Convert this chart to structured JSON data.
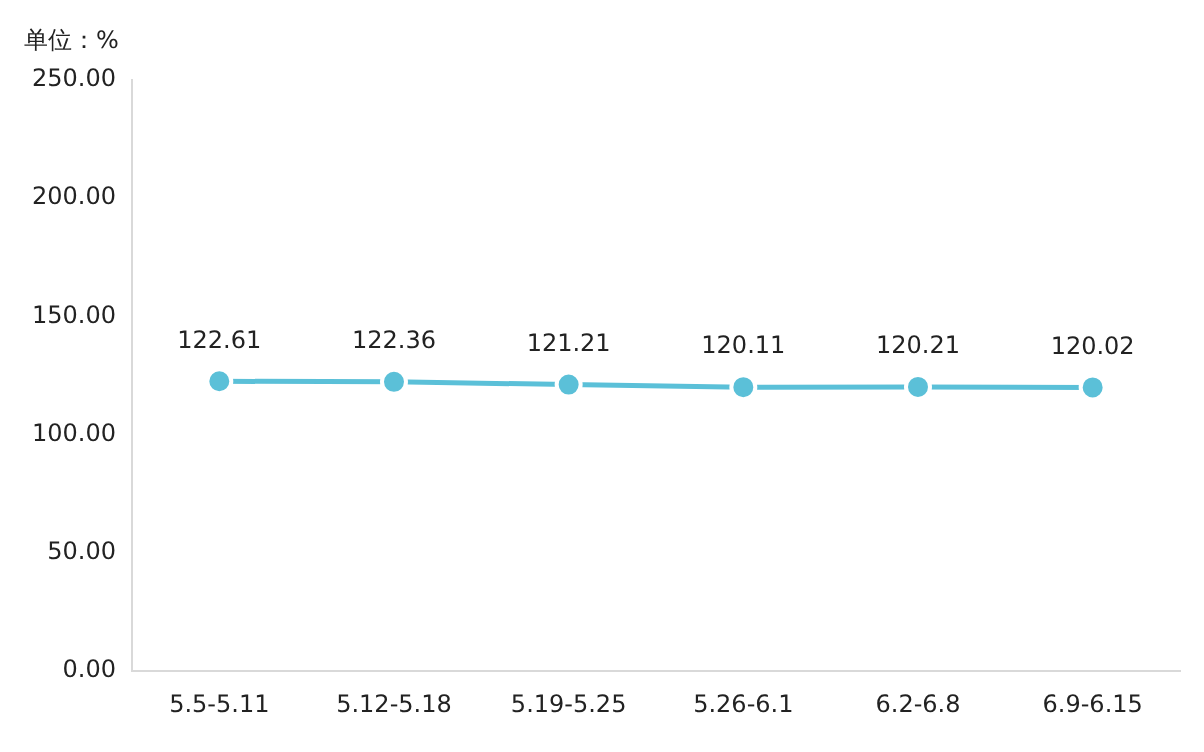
{
  "chart_data": {
    "type": "line",
    "ylabel": "单位：%",
    "categories": [
      "5.5-5.11",
      "5.12-5.18",
      "5.19-5.25",
      "5.26-6.1",
      "6.2-6.8",
      "6.9-6.15"
    ],
    "series": [
      {
        "color": "#5bc0d8",
        "values": [
          122.61,
          122.36,
          121.21,
          120.11,
          120.21,
          120.02
        ]
      }
    ],
    "ylim": [
      0,
      250
    ],
    "yticks": [
      {
        "value": 0,
        "label": "0.00"
      },
      {
        "value": 50,
        "label": "50.00"
      },
      {
        "value": 100,
        "label": "100.00"
      },
      {
        "value": 150,
        "label": "150.00"
      },
      {
        "value": 200,
        "label": "200.00"
      },
      {
        "value": 250,
        "label": "250.00"
      }
    ],
    "grid": false,
    "legend": false,
    "marker": "circle",
    "line_style": "solid",
    "data_labels": true
  }
}
